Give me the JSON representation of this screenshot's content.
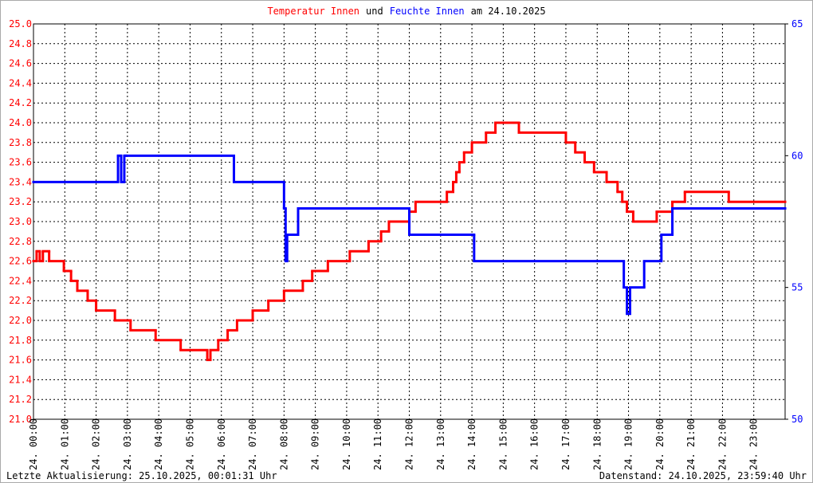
{
  "chart_data": {
    "type": "step-line",
    "title_parts": [
      {
        "text": "Temperatur Innen",
        "color": "#ff0000"
      },
      {
        "text": "und",
        "color": "#000000"
      },
      {
        "text": "Feuchte Innen",
        "color": "#0000ff"
      },
      {
        "text": "am 24.10.2025",
        "color": "#000000"
      }
    ],
    "footer_left": "Letzte Aktualisierung: 25.10.2025, 00:01:31 Uhr",
    "footer_right": "Datenstand: 24.10.2025, 23:59:40 Uhr",
    "grid": true,
    "xlim": [
      0,
      24
    ],
    "xticks": [
      {
        "value": 0,
        "label": "24. 00:00"
      },
      {
        "value": 1,
        "label": "24. 01:00"
      },
      {
        "value": 2,
        "label": "24. 02:00"
      },
      {
        "value": 3,
        "label": "24. 03:00"
      },
      {
        "value": 4,
        "label": "24. 04:00"
      },
      {
        "value": 5,
        "label": "24. 05:00"
      },
      {
        "value": 6,
        "label": "24. 06:00"
      },
      {
        "value": 7,
        "label": "24. 07:00"
      },
      {
        "value": 8,
        "label": "24. 08:00"
      },
      {
        "value": 9,
        "label": "24. 09:00"
      },
      {
        "value": 10,
        "label": "24. 10:00"
      },
      {
        "value": 11,
        "label": "24. 11:00"
      },
      {
        "value": 12,
        "label": "24. 12:00"
      },
      {
        "value": 13,
        "label": "24. 13:00"
      },
      {
        "value": 14,
        "label": "24. 14:00"
      },
      {
        "value": 15,
        "label": "24. 15:00"
      },
      {
        "value": 16,
        "label": "24. 16:00"
      },
      {
        "value": 17,
        "label": "24. 17:00"
      },
      {
        "value": 18,
        "label": "24. 18:00"
      },
      {
        "value": 19,
        "label": "24. 19:00"
      },
      {
        "value": 20,
        "label": "24. 20:00"
      },
      {
        "value": 21,
        "label": "24. 21:00"
      },
      {
        "value": 22,
        "label": "24. 22:00"
      },
      {
        "value": 23,
        "label": "24. 23:00"
      }
    ],
    "ylim": [
      21.0,
      25.0
    ],
    "yticks": [
      {
        "value": 21,
        "label": "21.0"
      },
      21.2,
      21.4,
      21.6,
      21.8,
      {
        "value": 22,
        "label": "22.0"
      },
      22.2,
      22.4,
      22.6,
      22.8,
      {
        "value": 23,
        "label": "23.0"
      },
      23.2,
      23.4,
      23.6,
      23.8,
      {
        "value": 24,
        "label": "24.0"
      },
      24.2,
      24.4,
      24.6,
      24.8,
      {
        "value": 25,
        "label": "25.0"
      }
    ],
    "y2lim": [
      50,
      65
    ],
    "y2ticks": [
      50,
      55,
      60,
      65
    ],
    "series": [
      {
        "name": "Temperatur Innen",
        "color": "#ff0000",
        "axis": "y",
        "x": [
          0,
          0.1,
          0.2,
          0.3,
          0.5,
          0.97,
          1.2,
          1.4,
          1.73,
          2.0,
          2.6,
          3.1,
          3.9,
          4.7,
          5.55,
          5.65,
          5.9,
          6.2,
          6.5,
          7.0,
          7.5,
          8.0,
          8.6,
          8.9,
          9.4,
          10.1,
          10.7,
          11.1,
          11.35,
          12.0,
          12.2,
          13.2,
          13.4,
          13.5,
          13.6,
          13.75,
          14.0,
          14.45,
          14.75,
          15.5,
          17.0,
          17.3,
          17.6,
          17.9,
          18.3,
          18.65,
          18.8,
          18.95,
          19.15,
          19.9,
          20.4,
          20.8,
          22.2
        ],
        "values": [
          22.6,
          22.7,
          22.6,
          22.7,
          22.6,
          22.5,
          22.4,
          22.3,
          22.2,
          22.1,
          22.0,
          21.9,
          21.8,
          21.7,
          21.6,
          21.7,
          21.8,
          21.9,
          22.0,
          22.1,
          22.2,
          22.3,
          22.4,
          22.5,
          22.6,
          22.7,
          22.8,
          22.9,
          23.0,
          23.1,
          23.2,
          23.3,
          23.4,
          23.5,
          23.6,
          23.7,
          23.8,
          23.9,
          24.0,
          23.9,
          23.8,
          23.7,
          23.6,
          23.5,
          23.4,
          23.3,
          23.2,
          23.1,
          23.0,
          23.1,
          23.2,
          23.3,
          23.2
        ]
      },
      {
        "name": "Feuchte Innen",
        "color": "#0000ff",
        "axis": "y2",
        "x": [
          0,
          2.7,
          2.8,
          2.9,
          2.95,
          6.4,
          8.0,
          8.05,
          8.1,
          8.45,
          12.0,
          14.07,
          18.85,
          18.95,
          19.05,
          19.5,
          20.05,
          20.4
        ],
        "values": [
          59,
          60,
          59,
          60,
          60,
          59,
          58,
          56,
          57,
          58,
          57,
          56,
          55,
          54,
          55,
          56,
          57,
          58
        ]
      }
    ]
  }
}
